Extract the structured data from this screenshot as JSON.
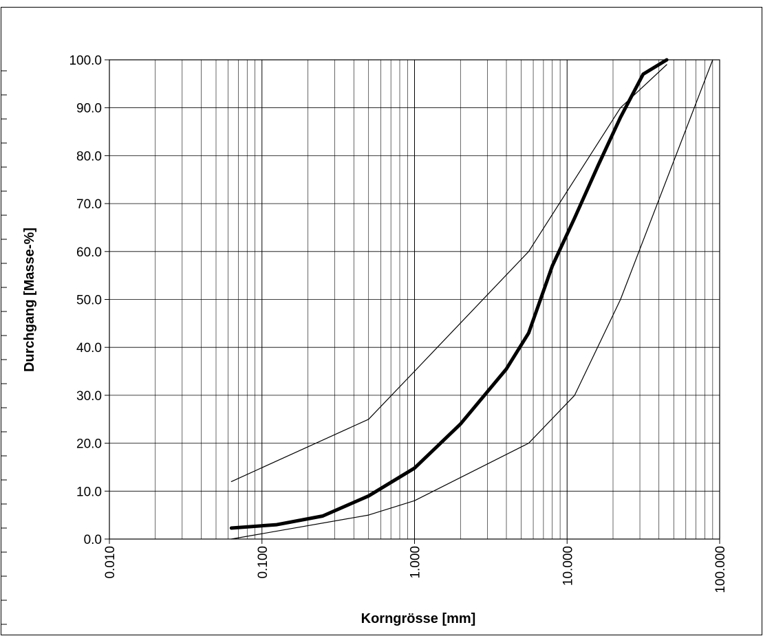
{
  "chart_data": {
    "type": "line",
    "title": "",
    "xlabel": "Korngrösse [mm]",
    "ylabel": "Durchgang [Masse-%]",
    "x_scale": "log",
    "xlim": [
      0.01,
      100
    ],
    "ylim": [
      0,
      100
    ],
    "grid": true,
    "x_ticks": [
      "0.010",
      "0.100",
      "1.000",
      "10.000",
      "100.000"
    ],
    "y_ticks": [
      "0.0",
      "10.0",
      "20.0",
      "30.0",
      "40.0",
      "50.0",
      "60.0",
      "70.0",
      "80.0",
      "90.0",
      "100.0"
    ],
    "series": [
      {
        "role": "measured-curve",
        "style": "thick",
        "points": [
          [
            0.063,
            2.3
          ],
          [
            0.125,
            3.0
          ],
          [
            0.25,
            4.8
          ],
          [
            0.5,
            9.0
          ],
          [
            1.0,
            14.8
          ],
          [
            2.0,
            24.0
          ],
          [
            4.0,
            35.5
          ],
          [
            5.6,
            43.0
          ],
          [
            8.0,
            57.0
          ],
          [
            11.2,
            67.0
          ],
          [
            16.0,
            78.0
          ],
          [
            22.4,
            88.0
          ],
          [
            31.5,
            97.0
          ],
          [
            45.0,
            100.0
          ]
        ]
      },
      {
        "role": "upper-limit",
        "style": "thin",
        "points": [
          [
            0.063,
            12.0
          ],
          [
            0.5,
            25.0
          ],
          [
            1.0,
            35.0
          ],
          [
            5.6,
            60.0
          ],
          [
            22.4,
            90.0
          ],
          [
            45.0,
            99.0
          ]
        ]
      },
      {
        "role": "lower-limit",
        "style": "thin",
        "points": [
          [
            0.063,
            0.0
          ],
          [
            0.5,
            5.0
          ],
          [
            1.0,
            8.0
          ],
          [
            5.6,
            20.0
          ],
          [
            11.2,
            30.0
          ],
          [
            22.4,
            50.0
          ],
          [
            90.0,
            100.0
          ]
        ]
      }
    ]
  },
  "colors": {
    "line": "#000000",
    "grid": "#000000",
    "background": "#ffffff"
  }
}
